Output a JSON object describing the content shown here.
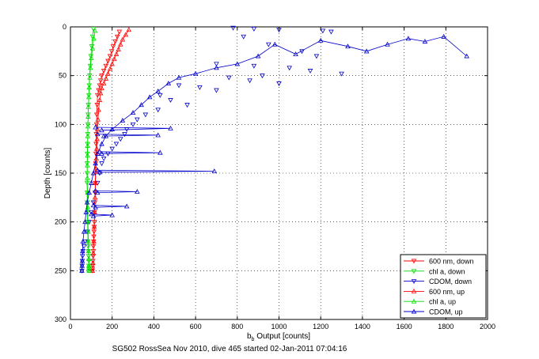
{
  "chart_data": {
    "type": "scatter",
    "xlabel_main": "b",
    "xlabel_sub": "b",
    "xlabel_rest": " Output [counts]",
    "ylabel": "Depth [counts]",
    "caption": "SG502 RossSea Nov 2010, dive 465 started 02-Jan-2011 07:04:16",
    "xlim": [
      0,
      2000
    ],
    "ylim": [
      0,
      300
    ],
    "y_reversed": true,
    "grid": true,
    "legend_position": "bottom-right",
    "x_ticks": [
      0,
      200,
      400,
      600,
      800,
      1000,
      1200,
      1400,
      1600,
      1800,
      2000
    ],
    "y_ticks": [
      0,
      50,
      100,
      150,
      200,
      250,
      300
    ],
    "series": [
      {
        "name": "600 nm, down",
        "color": "#ff0000",
        "marker": "tri-down",
        "line": true,
        "x": [
          235,
          225,
          215,
          205,
          198,
          190,
          180,
          170,
          160,
          150,
          145,
          140,
          135,
          130,
          128,
          126,
          125,
          124,
          123,
          122,
          121,
          120,
          119,
          118,
          117,
          116,
          115,
          114,
          113,
          112,
          111,
          110,
          110,
          109,
          108,
          107,
          106,
          105
        ],
        "y": [
          5,
          10,
          15,
          20,
          25,
          30,
          35,
          40,
          45,
          50,
          55,
          60,
          65,
          70,
          80,
          90,
          100,
          110,
          120,
          130,
          140,
          150,
          160,
          170,
          180,
          190,
          200,
          205,
          210,
          215,
          220,
          225,
          230,
          235,
          240,
          245,
          248,
          250
        ]
      },
      {
        "name": "chl a, down",
        "color": "#00dd00",
        "marker": "tri-down",
        "line": true,
        "x": [
          110,
          106,
          102,
          98,
          95,
          92,
          90,
          88,
          86,
          85,
          84,
          83,
          82,
          81,
          80,
          80,
          80,
          80,
          80,
          81,
          82,
          83,
          84,
          85,
          86,
          87,
          88,
          88,
          88,
          88
        ],
        "y": [
          2,
          10,
          20,
          30,
          40,
          50,
          60,
          70,
          80,
          90,
          100,
          110,
          120,
          130,
          140,
          150,
          160,
          170,
          180,
          190,
          200,
          210,
          220,
          225,
          230,
          235,
          240,
          245,
          248,
          250
        ]
      },
      {
        "name": "CDOM, down",
        "color": "#0000cc",
        "marker": "tri-down",
        "line": false,
        "x": [
          780,
          880,
          1000,
          1210,
          1250,
          830,
          950,
          1110,
          1180,
          700,
          880,
          1050,
          1150,
          1300,
          920,
          760,
          860,
          1000,
          520,
          620,
          700,
          430,
          480,
          560,
          420,
          360,
          320,
          300,
          270,
          260,
          240,
          220,
          200,
          180,
          160,
          150,
          140,
          130,
          120,
          110,
          100,
          90,
          80,
          70,
          65,
          60,
          58,
          57,
          56,
          55
        ],
        "y": [
          1,
          2,
          3,
          4,
          5,
          10,
          18,
          25,
          30,
          38,
          40,
          42,
          45,
          48,
          50,
          52,
          55,
          58,
          60,
          62,
          65,
          70,
          75,
          80,
          85,
          90,
          95,
          100,
          105,
          110,
          115,
          120,
          125,
          130,
          135,
          140,
          150,
          160,
          170,
          180,
          190,
          200,
          210,
          220,
          225,
          230,
          235,
          240,
          245,
          250
        ]
      },
      {
        "name": "600 nm, up",
        "color": "#ff0000",
        "marker": "tri-up",
        "line": true,
        "x": [
          280,
          265,
          250,
          240,
          230,
          220,
          210,
          200,
          190,
          180,
          170,
          160,
          150,
          145,
          140,
          135,
          132,
          130,
          128,
          126,
          124,
          122,
          120,
          118,
          116,
          114,
          112,
          110,
          108,
          106
        ],
        "y": [
          3,
          8,
          13,
          18,
          23,
          28,
          33,
          38,
          43,
          48,
          53,
          58,
          63,
          68,
          75,
          85,
          95,
          105,
          115,
          125,
          135,
          145,
          160,
          175,
          190,
          205,
          220,
          232,
          242,
          250
        ]
      },
      {
        "name": "chl a, up",
        "color": "#00dd00",
        "marker": "tri-up",
        "line": true,
        "x": [
          118,
          112,
          106,
          100,
          96,
          93,
          90,
          88,
          86,
          85,
          84,
          83,
          82,
          82,
          81,
          81,
          82,
          83,
          84,
          85,
          86,
          87,
          88,
          89,
          90
        ],
        "y": [
          4,
          12,
          22,
          32,
          42,
          52,
          62,
          72,
          82,
          92,
          102,
          112,
          122,
          132,
          142,
          155,
          170,
          185,
          200,
          210,
          220,
          230,
          238,
          245,
          250
        ]
      },
      {
        "name": "CDOM, up",
        "color": "#0000cc",
        "marker": "tri-up",
        "line": true,
        "x": [
          1900,
          1790,
          1700,
          1620,
          1520,
          1420,
          1330,
          1200,
          1080,
          980,
          900,
          800,
          700,
          600,
          520,
          470,
          420,
          380,
          340,
          300,
          250,
          200,
          170,
          150,
          130,
          120,
          110,
          100,
          90,
          80,
          75,
          70,
          65,
          60,
          58,
          57,
          56,
          55
        ],
        "y": [
          30,
          10,
          15,
          12,
          18,
          25,
          20,
          14,
          28,
          18,
          30,
          38,
          42,
          48,
          52,
          58,
          66,
          72,
          80,
          88,
          96,
          105,
          112,
          120,
          130,
          140,
          150,
          160,
          170,
          180,
          190,
          200,
          210,
          220,
          230,
          240,
          245,
          250
        ]
      }
    ],
    "spikes": [
      {
        "x": [
          120,
          480,
          150
        ],
        "y": [
          103,
          104,
          106
        ]
      },
      {
        "x": [
          130,
          420,
          160
        ],
        "y": [
          110,
          111,
          112
        ]
      },
      {
        "x": [
          140,
          430,
          150
        ],
        "y": [
          128,
          129,
          130
        ]
      },
      {
        "x": [
          130,
          690,
          140
        ],
        "y": [
          147,
          148,
          149
        ]
      },
      {
        "x": [
          120,
          320,
          130
        ],
        "y": [
          168,
          169,
          170
        ]
      },
      {
        "x": [
          110,
          270,
          120
        ],
        "y": [
          183,
          184,
          185
        ]
      },
      {
        "x": [
          100,
          200,
          110
        ],
        "y": [
          192,
          193,
          194
        ]
      }
    ]
  }
}
